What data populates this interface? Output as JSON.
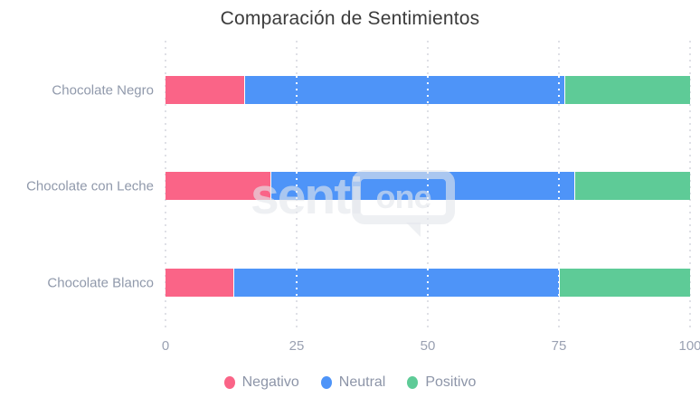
{
  "chart_data": {
    "type": "bar",
    "orientation": "horizontal",
    "stacked": true,
    "title": "Comparación de Sentimientos",
    "categories": [
      "Chocolate Negro",
      "Chocolate con Leche",
      "Chocolate Blanco"
    ],
    "series": [
      {
        "name": "Negativo",
        "color": "#fa6487",
        "values": [
          15,
          20,
          13
        ]
      },
      {
        "name": "Neutral",
        "color": "#4e94f8",
        "values": [
          61,
          58,
          62
        ]
      },
      {
        "name": "Positivo",
        "color": "#5ecb97",
        "values": [
          24,
          22,
          25
        ]
      }
    ],
    "x_ticks": [
      0,
      25,
      50,
      75,
      100
    ],
    "xlim": [
      0,
      100
    ],
    "grid": "dotted-vertical",
    "legend_position": "bottom",
    "text_colors": {
      "title": "#3b3b3b",
      "axis": "#9aa1b2",
      "category": "#9099ab",
      "legend": "#8d95a8"
    }
  },
  "watermark": {
    "text_left": "senti",
    "text_bubble": "one"
  }
}
